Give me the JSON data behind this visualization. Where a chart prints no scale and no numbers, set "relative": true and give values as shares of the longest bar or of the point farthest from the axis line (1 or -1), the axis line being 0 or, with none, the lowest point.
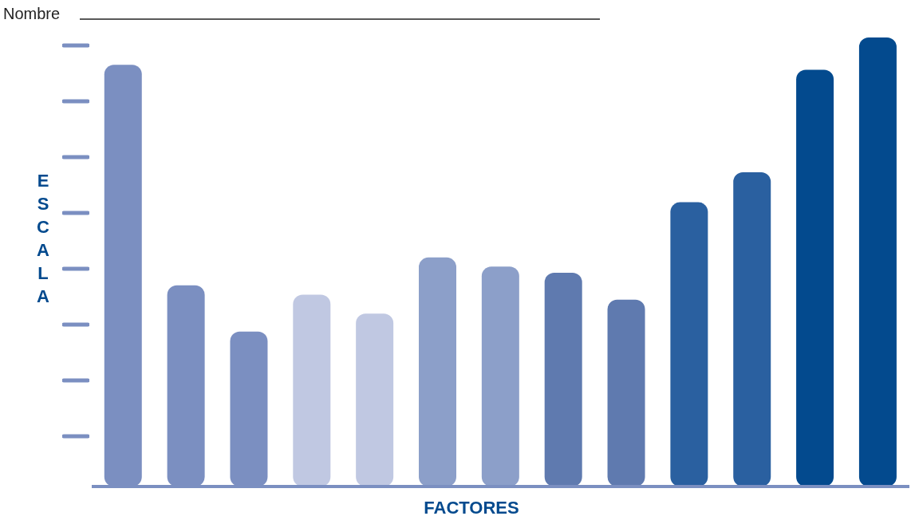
{
  "chart_data": {
    "type": "bar",
    "xlabel": "FACTORES",
    "ylabel": "ESCALA",
    "annotations": [
      "Nombre"
    ],
    "relative": true,
    "categories": [
      null,
      null,
      null,
      null,
      null,
      null,
      null,
      null,
      null,
      null,
      null,
      null,
      null
    ],
    "values": [
      0.939,
      0.448,
      0.345,
      0.427,
      0.385,
      0.51,
      0.49,
      0.476,
      0.416,
      0.633,
      0.7,
      0.928,
      1
    ],
    "colors": [
      "#7b8fc1",
      "#7b8fc1",
      "#7b8fc1",
      "#c0c8e2",
      "#c0c8e2",
      "#8c9fc9",
      "#8c9fc9",
      "#5f7aaf",
      "#5f7aaf",
      "#2a60a0",
      "#2a60a0",
      "#034a8e",
      "#034a8e"
    ],
    "grid": false,
    "legend": false
  }
}
